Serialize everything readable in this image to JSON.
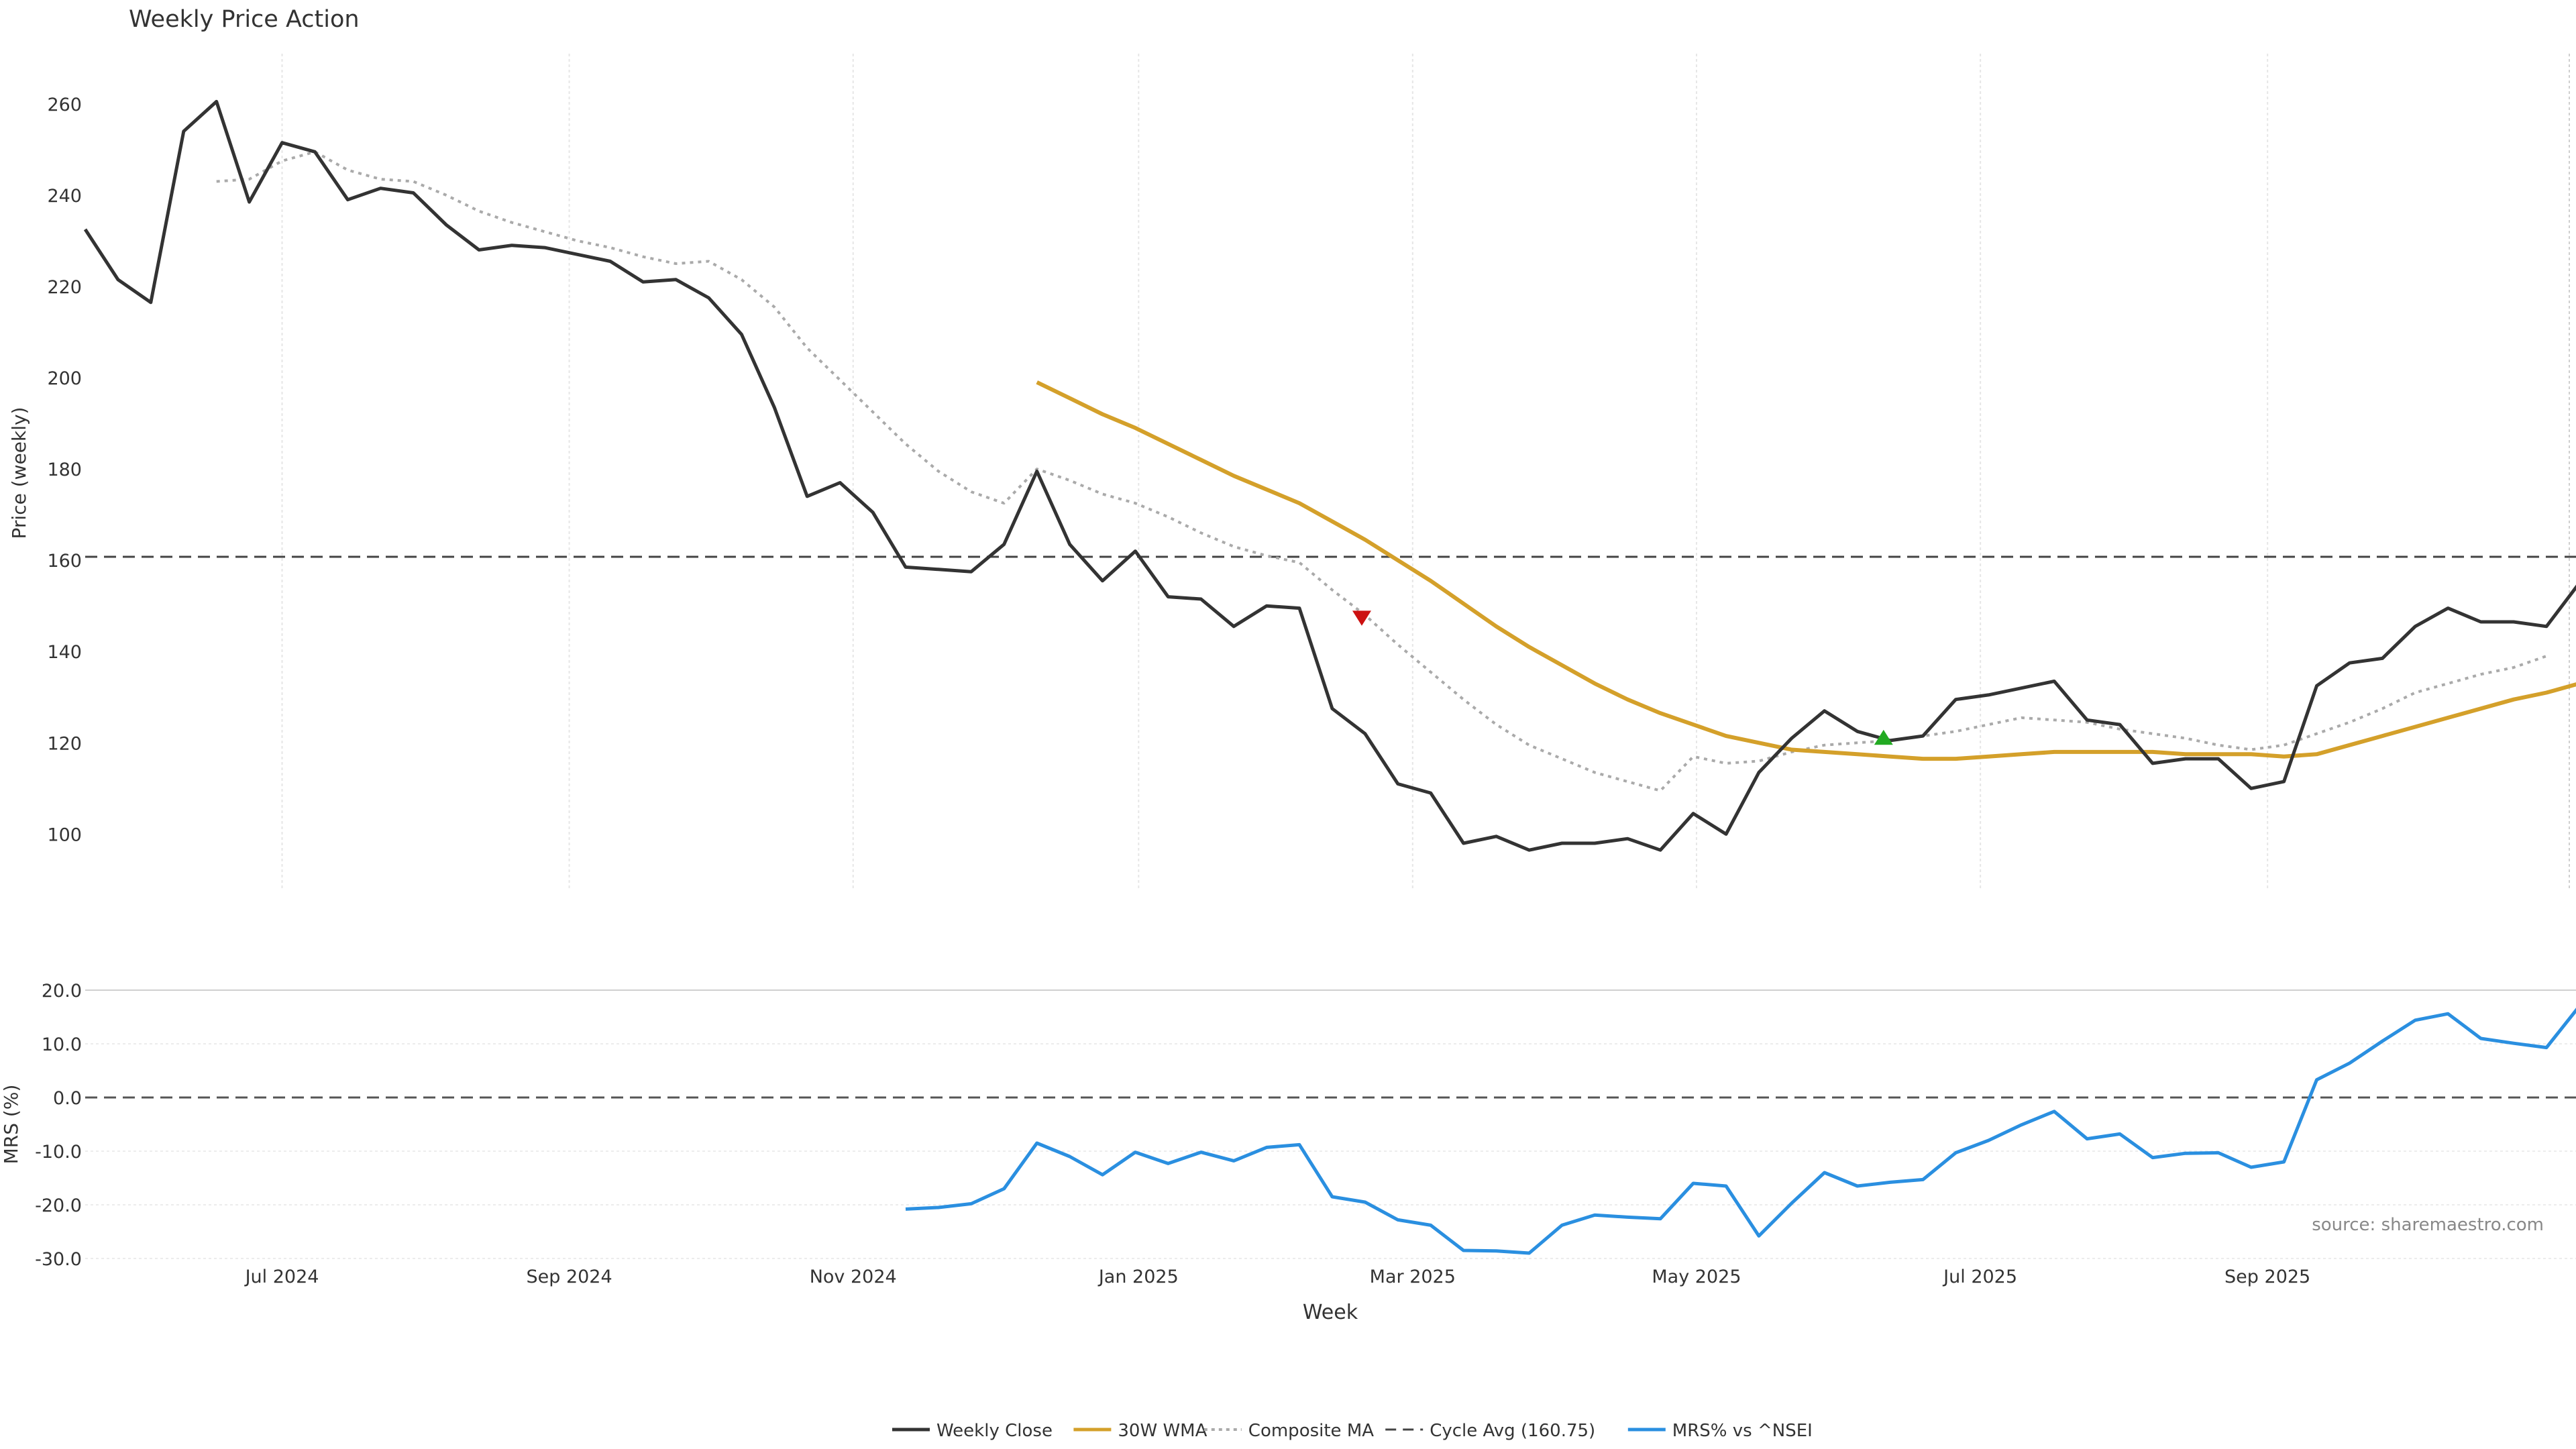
{
  "chart_data": [
    {
      "type": "line",
      "title": "Weekly Price Action",
      "ylabel": "Price (weekly)",
      "ylim": [
        88,
        271
      ],
      "yticks": [
        "100",
        "120",
        "140",
        "160",
        "180",
        "200",
        "220",
        "240",
        "260"
      ],
      "xlim": [
        0,
        75.9
      ],
      "grid": "vertical",
      "reference_line": {
        "name": "Cycle Avg (160.75)",
        "value": 160.75
      },
      "series": [
        {
          "name": "Weekly Close",
          "color": "#333333",
          "start": 0,
          "values": [
            232.5,
            221.5,
            216.5,
            254,
            260.5,
            238.5,
            251.5,
            249.5,
            239,
            241.5,
            240.5,
            233.5,
            228,
            229,
            228.5,
            227,
            225.5,
            221,
            221.5,
            217.5,
            209.5,
            193.5,
            174,
            177,
            170.5,
            158.5,
            158,
            157.5,
            163.5,
            179.5,
            163.5,
            155.5,
            162,
            152,
            151.5,
            145.5,
            150,
            149.5,
            127.5,
            122,
            111,
            109,
            98,
            99.5,
            96.5,
            98,
            98,
            99,
            96.5,
            104.5,
            100,
            113.5,
            121,
            127,
            122.5,
            120.5,
            121.5,
            129.5,
            130.5,
            132,
            133.5,
            125,
            124,
            115.5,
            116.5,
            116.5,
            110,
            111.5,
            132.5,
            137.5,
            138.5,
            145.5,
            149.5,
            146.5,
            146.5,
            145.5,
            155
          ]
        },
        {
          "name": "30W WMA",
          "color": "#d4a02a",
          "start": 29,
          "values": [
            199,
            195.5,
            192,
            189,
            185.5,
            182,
            178.5,
            175.5,
            172.5,
            168.5,
            164.5,
            160,
            155.5,
            150.5,
            145.5,
            141,
            137,
            133,
            129.5,
            126.5,
            124,
            121.5,
            120,
            118.5,
            118,
            117.5,
            117,
            116.5,
            116.5,
            117,
            117.5,
            118,
            118,
            118,
            118,
            117.5,
            117.5,
            117.5,
            117,
            117.5,
            119.5,
            121.5,
            123.5,
            125.5,
            127.5,
            129.5,
            131,
            133
          ]
        },
        {
          "name": "Composite MA",
          "color": "#aaaaaa",
          "start": 4,
          "values": [
            243,
            243.5,
            247.5,
            249.5,
            245.5,
            243.5,
            243,
            240,
            236.5,
            234,
            232,
            230,
            228.5,
            226.5,
            225,
            225.5,
            221.5,
            215.5,
            206.5,
            199.5,
            192.5,
            185.5,
            179.5,
            175,
            172.5,
            180,
            177.5,
            174.5,
            172.5,
            169.5,
            166,
            163,
            161,
            159.5,
            153.5,
            148,
            141.5,
            135.5,
            129.5,
            124,
            119.5,
            116.5,
            113.5,
            111.5,
            109.5,
            117,
            115.5,
            116,
            118,
            119.5,
            120,
            120.5,
            121.5,
            122.5,
            124,
            125.5,
            125,
            124.5,
            123,
            122,
            121,
            119.5,
            118.5,
            119.5,
            122,
            124.5,
            127.5,
            131,
            133,
            135,
            136.5,
            139
          ]
        }
      ],
      "markers": [
        {
          "type": "sell",
          "symbol": "triangle-down",
          "color": "#cc1111",
          "x": 38.9,
          "y": 147.5
        },
        {
          "type": "buy",
          "symbol": "triangle-up",
          "color": "#22aa22",
          "x": 54.8,
          "y": 121
        }
      ]
    },
    {
      "type": "line",
      "ylabel": "MRS (%)",
      "xlabel": "Week",
      "ylim": [
        -30.5,
        22
      ],
      "yticks": [
        "20.0",
        "10.0",
        "0.0",
        "-10.0",
        "-20.0",
        "-30.0"
      ],
      "xlim": [
        0,
        75.9
      ],
      "xticks": [
        {
          "label": "Jul 2024",
          "x": 6
        },
        {
          "label": "Sep 2024",
          "x": 14.75
        },
        {
          "label": "Nov 2024",
          "x": 23.4
        },
        {
          "label": "Jan 2025",
          "x": 32.1
        },
        {
          "label": "Mar 2025",
          "x": 40.45
        },
        {
          "label": "May 2025",
          "x": 49.1
        },
        {
          "label": "Jul 2025",
          "x": 57.75
        },
        {
          "label": "Sep 2025",
          "x": 66.5
        }
      ],
      "reference_line": {
        "value": 0
      },
      "series": [
        {
          "name": "MRS% vs ^NSEI",
          "color": "#2a8fe0",
          "start": 25,
          "values": [
            -20.8,
            -20.5,
            -19.8,
            -17,
            -8.5,
            -11,
            -14.4,
            -10.2,
            -12.3,
            -10.2,
            -11.8,
            -9.3,
            -8.8,
            -18.5,
            -19.5,
            -22.8,
            -23.8,
            -28.5,
            -28.6,
            -29,
            -23.8,
            -21.9,
            -22.3,
            -22.6,
            -16,
            -16.5,
            -25.8,
            -19.7,
            -14,
            -16.5,
            -15.8,
            -15.3,
            -10.3,
            -8,
            -5.1,
            -2.6,
            -7.7,
            -6.8,
            -11.2,
            -10.4,
            -10.3,
            -13,
            -12,
            3.3,
            6.4,
            10.5,
            14.4,
            15.6,
            11,
            10.1,
            9.3,
            17
          ]
        }
      ]
    }
  ],
  "source_note": "source: sharemaestro.com",
  "legend": [
    {
      "label": "Weekly Close",
      "style": "solid",
      "color": "#333333"
    },
    {
      "label": "30W WMA",
      "style": "solid",
      "color": "#d4a02a"
    },
    {
      "label": "Composite MA",
      "style": "dotted",
      "color": "#aaaaaa"
    },
    {
      "label": "Cycle Avg (160.75)",
      "style": "dashed",
      "color": "#444444"
    },
    {
      "label": "MRS% vs ^NSEI",
      "style": "solid",
      "color": "#2a8fe0"
    }
  ]
}
